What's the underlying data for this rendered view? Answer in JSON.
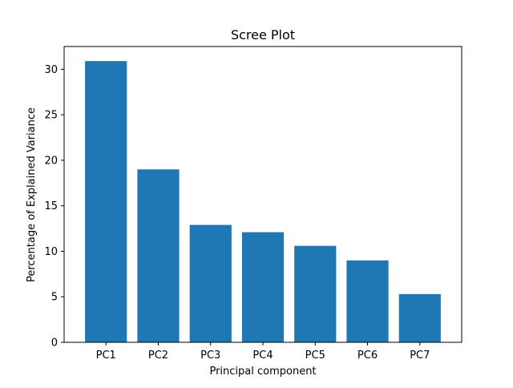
{
  "chart_data": {
    "type": "bar",
    "title": "Scree Plot",
    "xlabel": "Principal component",
    "ylabel": "Percentage of Explained Variance",
    "categories": [
      "PC1",
      "PC2",
      "PC3",
      "PC4",
      "PC5",
      "PC6",
      "PC7"
    ],
    "values": [
      30.9,
      19.0,
      12.9,
      12.1,
      10.6,
      9.0,
      5.3
    ],
    "ylim": [
      0,
      32.5
    ],
    "yticks": [
      0,
      5,
      10,
      15,
      20,
      25,
      30
    ],
    "grid": false,
    "bar_color": "#1f77b4"
  }
}
